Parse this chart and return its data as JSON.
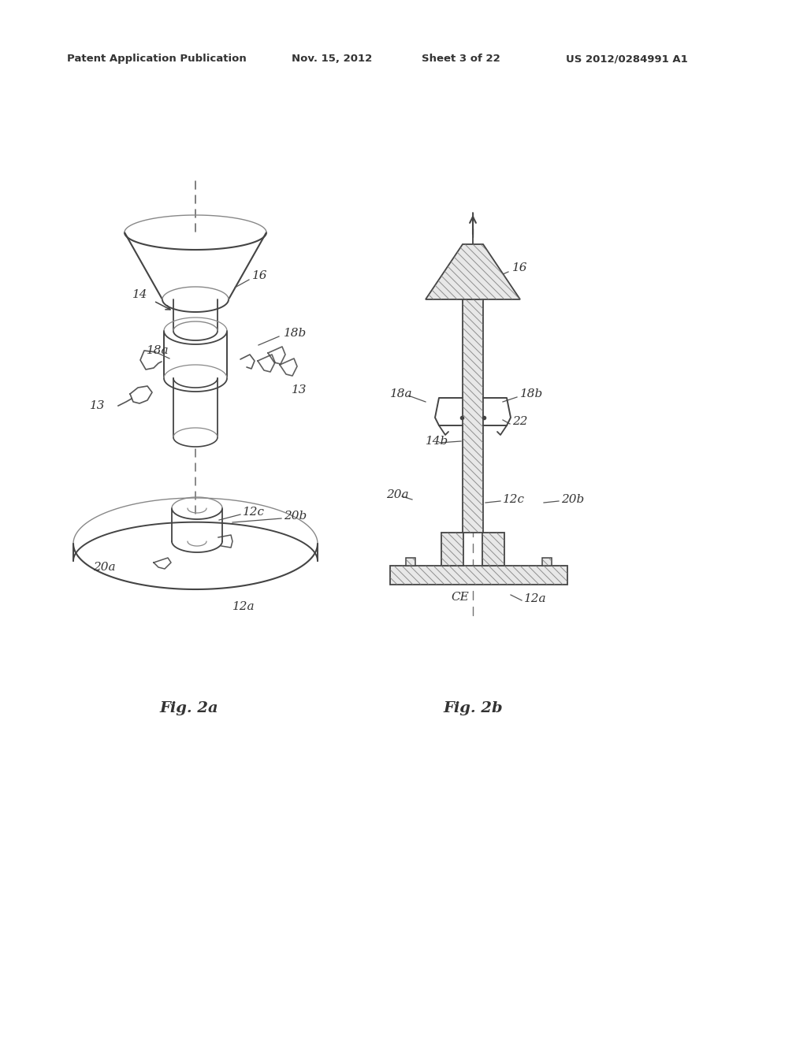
{
  "background_color": "#ffffff",
  "header_text": "Patent Application Publication",
  "header_date": "Nov. 15, 2012",
  "header_sheet": "Sheet 3 of 22",
  "header_patent": "US 2012/0284991 A1",
  "fig2a_label": "Fig. 2a",
  "fig2b_label": "Fig. 2b",
  "text_color": "#333333",
  "line_color": "#555555",
  "hatch_color": "#666666"
}
